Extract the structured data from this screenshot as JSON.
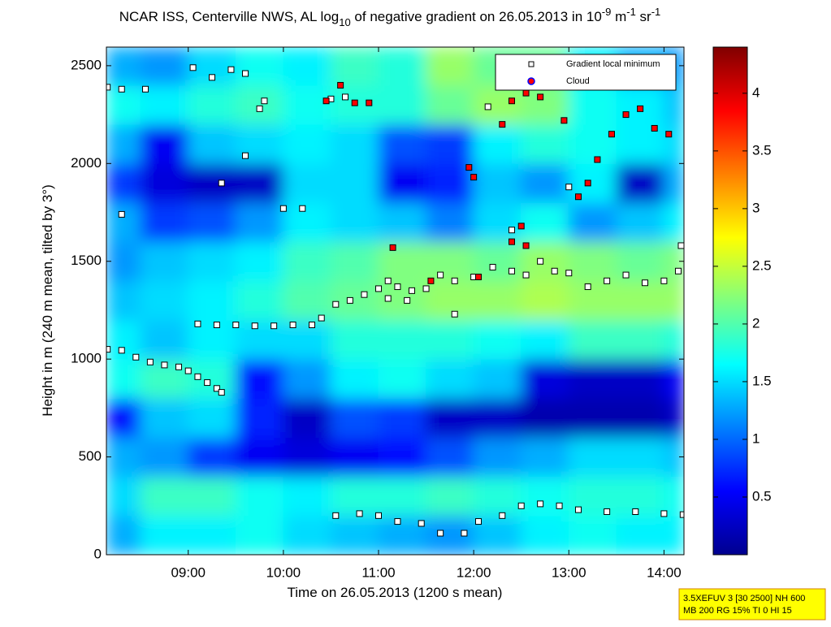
{
  "chart_data": {
    "type": "heatmap",
    "title": [
      "NCAR ISS, Centerville NWS, AL log",
      "10",
      " of negative gradient on 26.05.2013 in 10",
      "-9",
      " m",
      "-1",
      " sr",
      "-1"
    ],
    "xlabel": "Time on 26.05.2013 (1200 s mean)",
    "ylabel": "Height in m (240 m mean, tilted by 3°)",
    "xlim": [
      8.14,
      14.21
    ],
    "xticks": [
      {
        "value": 9,
        "label": "09:00"
      },
      {
        "value": 10,
        "label": "10:00"
      },
      {
        "value": 11,
        "label": "11:00"
      },
      {
        "value": 12,
        "label": "12:00"
      },
      {
        "value": 13,
        "label": "13:00"
      },
      {
        "value": 14,
        "label": "14:00"
      }
    ],
    "ylim": [
      0,
      2595
    ],
    "yticks": [
      0,
      500,
      1000,
      1500,
      2000,
      2500
    ],
    "clim": [
      0,
      4.4
    ],
    "cticks": [
      0.5,
      1,
      1.5,
      2,
      2.5,
      3,
      3.5,
      4
    ],
    "colormap": "jet",
    "xbins": [
      8.14,
      8.5,
      9,
      9.5,
      10,
      10.5,
      11,
      11.5,
      12,
      12.5,
      13,
      13.5,
      14,
      14.21
    ],
    "ybins": [
      0,
      200,
      400,
      600,
      800,
      1000,
      1200,
      1400,
      1600,
      1800,
      2000,
      2200,
      2400,
      2595
    ],
    "z": [
      [
        1.3,
        1.6,
        1.6,
        1.7,
        1.5,
        1.4,
        1.3,
        1.2,
        1.4,
        1.6,
        1.7,
        1.6,
        1.6
      ],
      [
        1.5,
        1.9,
        1.9,
        1.7,
        1.6,
        1.8,
        1.8,
        1.9,
        1.8,
        1.7,
        1.8,
        1.8,
        1.7
      ],
      [
        1.3,
        1.2,
        0.8,
        0.5,
        0.4,
        0.5,
        0.6,
        0.9,
        1.2,
        1.3,
        1.5,
        1.5,
        1.4
      ],
      [
        0.6,
        1.4,
        1.5,
        0.7,
        0.3,
        0.9,
        0.8,
        0.3,
        0.3,
        0.2,
        0.2,
        0.2,
        0.3
      ],
      [
        1.7,
        1.9,
        1.8,
        0.6,
        1.2,
        1.6,
        1.7,
        1.5,
        1.4,
        0.4,
        0.3,
        0.3,
        0.5
      ],
      [
        1.6,
        1.4,
        1.6,
        1.5,
        1.5,
        1.8,
        1.8,
        1.8,
        1.7,
        1.6,
        1.9,
        1.9,
        1.8
      ],
      [
        1.4,
        1.5,
        1.6,
        1.8,
        2.0,
        2.1,
        2.2,
        2.3,
        2.3,
        2.4,
        2.3,
        2.3,
        2.3
      ],
      [
        1.2,
        1.4,
        1.5,
        1.6,
        1.9,
        2.0,
        2.2,
        2.2,
        2.1,
        2.3,
        2.2,
        2.1,
        2.2
      ],
      [
        1.3,
        0.8,
        0.9,
        1.2,
        1.6,
        1.5,
        1.4,
        1.1,
        1.5,
        1.7,
        1.2,
        1.4,
        1.6
      ],
      [
        0.8,
        0.4,
        0.3,
        0.3,
        1.5,
        1.5,
        0.5,
        0.7,
        1.4,
        1.2,
        1.6,
        0.3,
        1.3
      ],
      [
        1.3,
        0.5,
        1.4,
        1.5,
        1.6,
        1.5,
        0.9,
        0.8,
        1.6,
        1.8,
        1.7,
        1.6,
        1.5
      ],
      [
        1.7,
        1.6,
        1.8,
        1.9,
        1.7,
        1.8,
        1.8,
        2.1,
        2.3,
        2.2,
        1.7,
        1.6,
        1.4
      ],
      [
        1.3,
        1.2,
        1.5,
        1.7,
        1.6,
        1.9,
        1.8,
        2.3,
        2.1,
        2.1,
        1.6,
        1.3,
        1.2
      ]
    ],
    "series": [
      {
        "name": "Gradient local minimum",
        "color": "#ffffff",
        "x": [
          8.15,
          8.3,
          8.45,
          8.6,
          8.75,
          8.9,
          9.0,
          9.1,
          9.2,
          9.3,
          9.35,
          9.1,
          9.3,
          9.5,
          9.7,
          9.9,
          10.1,
          10.3,
          10.4,
          10.55,
          10.7,
          10.85,
          11.0,
          11.1,
          11.2,
          11.35,
          11.5,
          11.65,
          11.8,
          12.0,
          12.2,
          12.4,
          12.55,
          12.7,
          12.85,
          13.0,
          13.2,
          13.4,
          13.6,
          13.8,
          14.0,
          14.15,
          14.18,
          10.55,
          10.8,
          11.0,
          11.2,
          11.45,
          11.65,
          11.9,
          12.05,
          12.3,
          12.5,
          12.7,
          12.9,
          13.1,
          13.4,
          13.7,
          14.0,
          14.2,
          8.15,
          8.3,
          8.55,
          9.05,
          9.25,
          9.45,
          9.6,
          9.8,
          9.75,
          10.0,
          10.2,
          10.5,
          10.65,
          8.3,
          9.35,
          9.6,
          11.1,
          11.3,
          11.8,
          12.15,
          12.4,
          13.0
        ],
        "values": [
          1050,
          1045,
          1010,
          985,
          970,
          960,
          940,
          910,
          880,
          850,
          830,
          1180,
          1175,
          1175,
          1170,
          1170,
          1175,
          1175,
          1210,
          1280,
          1300,
          1330,
          1360,
          1400,
          1370,
          1350,
          1360,
          1430,
          1400,
          1420,
          1470,
          1450,
          1430,
          1500,
          1450,
          1440,
          1370,
          1400,
          1430,
          1390,
          1400,
          1450,
          1580,
          200,
          210,
          200,
          170,
          160,
          110,
          110,
          170,
          200,
          250,
          260,
          250,
          230,
          220,
          220,
          210,
          205,
          2390,
          2380,
          2380,
          2490,
          2440,
          2480,
          2460,
          2320,
          2280,
          1770,
          1770,
          2330,
          2340,
          1740,
          1900,
          2040,
          1310,
          1300,
          1230,
          2290,
          1660,
          1880
        ]
      },
      {
        "name": "Cloud",
        "color": "#ff0000",
        "x": [
          10.45,
          10.6,
          10.75,
          10.9,
          11.15,
          11.95,
          12.0,
          12.3,
          12.4,
          12.55,
          12.5,
          12.55,
          12.7,
          12.95,
          13.1,
          13.2,
          13.3,
          13.45,
          13.6,
          13.75,
          13.9,
          14.05,
          12.05,
          11.55,
          12.4
        ],
        "values": [
          2320,
          2400,
          2310,
          2310,
          1570,
          1980,
          1930,
          2200,
          2320,
          2360,
          1680,
          1580,
          2340,
          2220,
          1830,
          1900,
          2020,
          2150,
          2250,
          2280,
          2180,
          2150,
          1420,
          1400,
          1600
        ]
      }
    ],
    "info": [
      "3.5XEFUV 3 [30 2500] NH 600",
      "MB 200 RG 15% TI 0 HI 15"
    ]
  }
}
